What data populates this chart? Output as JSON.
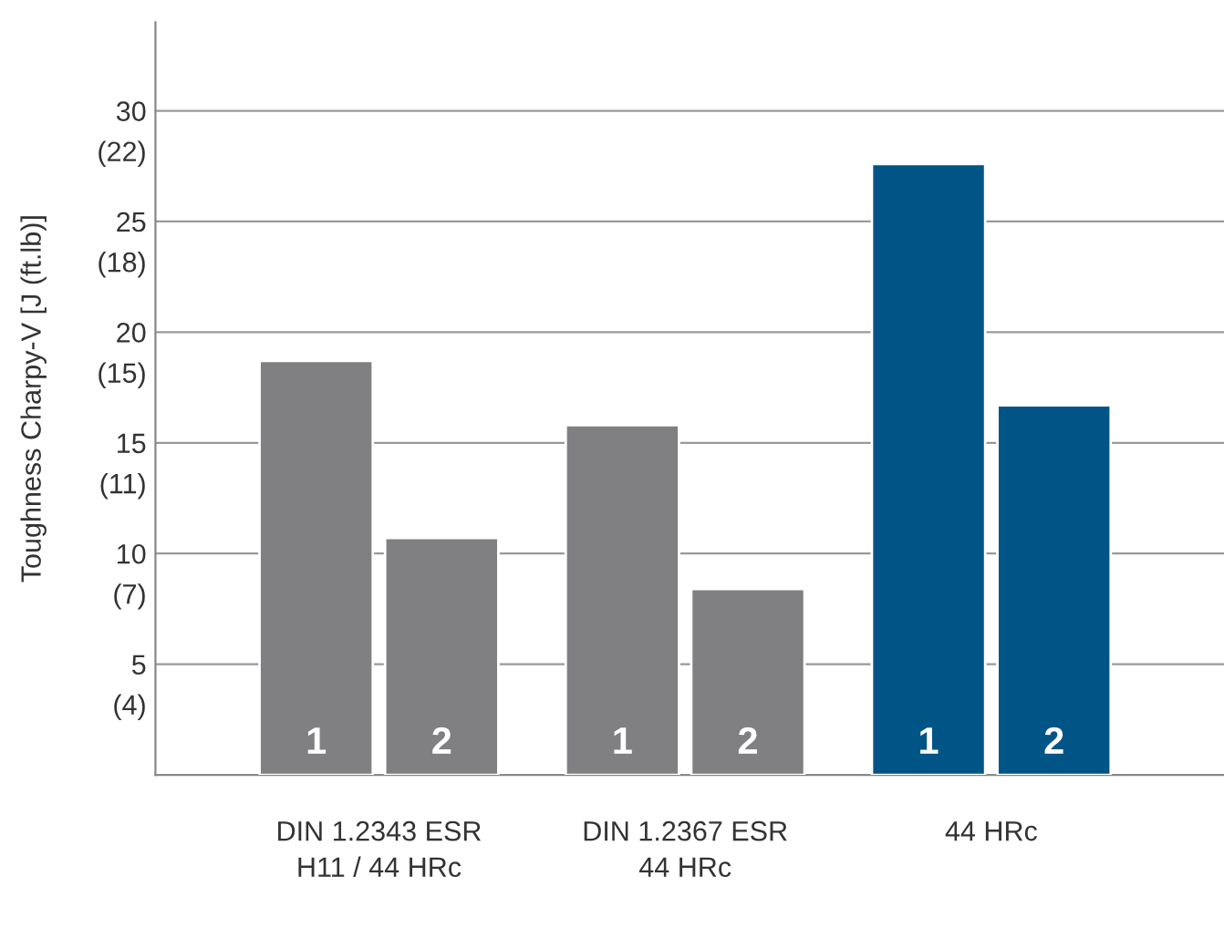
{
  "chart_data": {
    "type": "bar",
    "y2label": "Toughness Charpy-V [J (ft.lb)]",
    "categories": [
      "DIN 1.2343 ESR\nH11 / 44 HRc",
      "DIN 1.2367 ESR\n44 HRc",
      "44 HRc"
    ],
    "series": [
      {
        "name": "1",
        "colors": [
          "#808083",
          "#808083",
          "#005586"
        ],
        "values": [
          18.7,
          15.8,
          27.6
        ]
      },
      {
        "name": "2",
        "colors": [
          "#808083",
          "#808083",
          "#005586"
        ],
        "values": [
          10.7,
          8.4,
          16.7
        ]
      }
    ],
    "ylim": [
      0,
      34
    ],
    "yticks": [
      5,
      10,
      15,
      20,
      25,
      30
    ],
    "y2lim": [
      1.34,
      26.42
    ],
    "y2ticks": [
      {
        "value": 3.69,
        "label": "(4)"
      },
      {
        "value": 7.38,
        "label": "(7)"
      },
      {
        "value": 11.06,
        "label": "(11)"
      },
      {
        "value": 14.75,
        "label": "(15)"
      },
      {
        "value": 18.44,
        "label": "(18)"
      },
      {
        "value": 22.13,
        "label": "(22)"
      }
    ],
    "grid": "y",
    "legend": false
  }
}
